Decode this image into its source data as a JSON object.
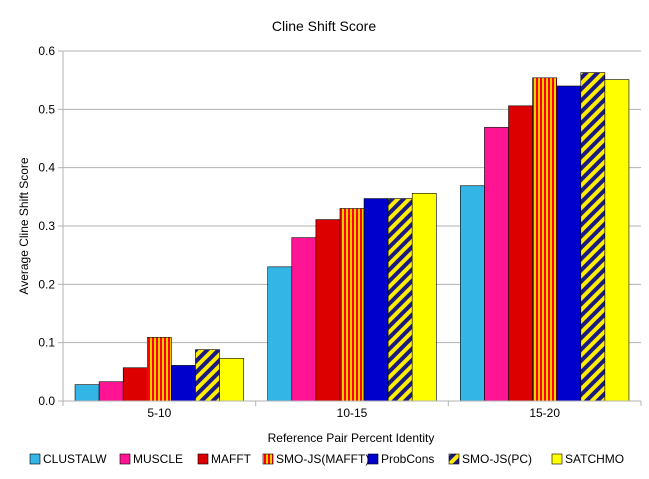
{
  "chart_data": {
    "type": "bar",
    "title": "Cline Shift Score",
    "xlabel": "Reference Pair Percent Identity",
    "ylabel": "Average Cline Shift Score",
    "ylim": [
      0,
      0.6
    ],
    "yticks": [
      "0.0",
      "0.1",
      "0.2",
      "0.3",
      "0.4",
      "0.5",
      "0.6"
    ],
    "grid": true,
    "legend_position": "bottom",
    "categories": [
      "5-10",
      "10-15",
      "15-20"
    ],
    "series": [
      {
        "name": "CLUSTALW",
        "color": "#33b5e5",
        "pattern": "solid",
        "values": [
          0.028,
          0.23,
          0.369
        ]
      },
      {
        "name": "MUSCLE",
        "color": "#ff1493",
        "pattern": "solid",
        "values": [
          0.033,
          0.28,
          0.469
        ]
      },
      {
        "name": "MAFFT",
        "color": "#dd0000",
        "pattern": "solid",
        "values": [
          0.057,
          0.311,
          0.506
        ]
      },
      {
        "name": "SMO-JS(MAFFT)",
        "color": "#ff0000",
        "accent": "#ffcc00",
        "pattern": "vstripe",
        "values": [
          0.109,
          0.33,
          0.554
        ]
      },
      {
        "name": "ProbCons",
        "color": "#0000cc",
        "pattern": "solid",
        "values": [
          0.061,
          0.347,
          0.54
        ]
      },
      {
        "name": "SMO-JS(PC)",
        "color": "#1a1a80",
        "accent": "#ffee00",
        "pattern": "dstripe",
        "values": [
          0.088,
          0.347,
          0.563
        ]
      },
      {
        "name": "SATCHMO",
        "color": "#ffff00",
        "pattern": "solid",
        "values": [
          0.073,
          0.356,
          0.551
        ]
      }
    ]
  }
}
